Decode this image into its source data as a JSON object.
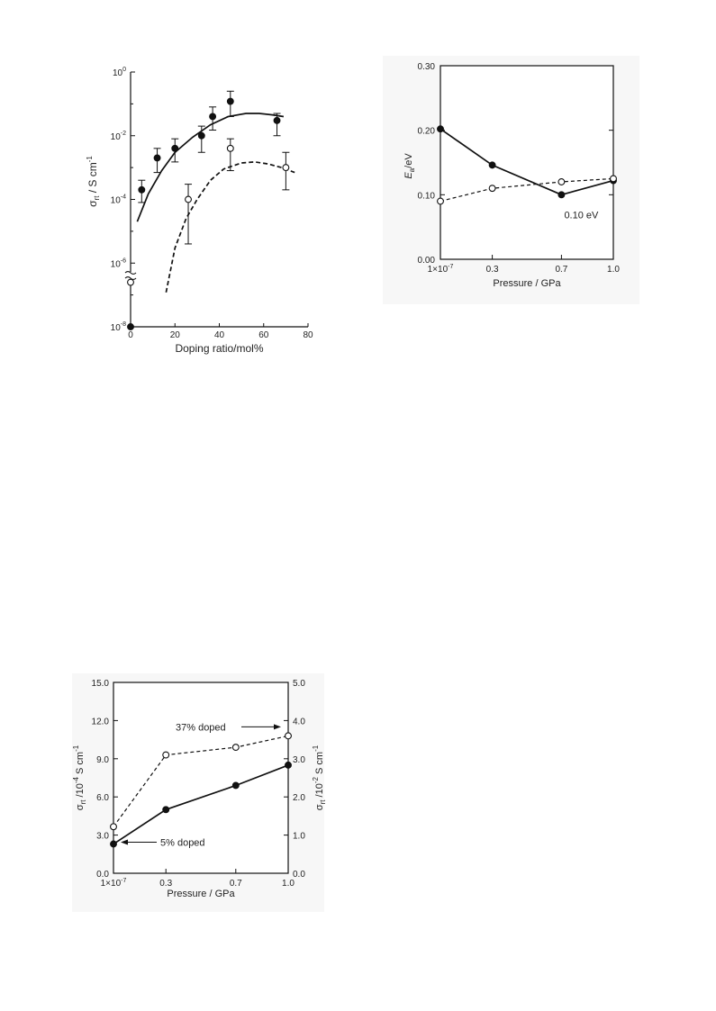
{
  "chart_data": [
    {
      "type": "scatter",
      "xlabel": "Doping ratio/mol%",
      "ylabel": "σrt / S cm-1",
      "ylabel_main": "σ",
      "ylabel_sub": "rt",
      "ylabel_unit": " / S cm",
      "ylabel_sup": "-1",
      "scale": "log",
      "xlim": [
        0,
        80
      ],
      "ylim_log": [
        -8,
        0
      ],
      "x_ticks": [
        "0",
        "20",
        "40",
        "60",
        "80"
      ],
      "y_ticks": [
        {
          "base": "10",
          "exp": "-8"
        },
        {
          "base": "10",
          "exp": "-6"
        },
        {
          "base": "10",
          "exp": "-4"
        },
        {
          "base": "10",
          "exp": "-2"
        },
        {
          "base": "10",
          "exp": "0"
        }
      ],
      "series": [
        {
          "marker": "filled",
          "points": [
            {
              "x": 0,
              "y": 1e-08
            },
            {
              "x": 5,
              "y": 0.0002,
              "lo": 8e-05,
              "hi": 0.0004
            },
            {
              "x": 12,
              "y": 0.002,
              "lo": 0.0007,
              "hi": 0.004
            },
            {
              "x": 20,
              "y": 0.004,
              "lo": 0.0015,
              "hi": 0.008
            },
            {
              "x": 32,
              "y": 0.01,
              "lo": 0.003,
              "hi": 0.02
            },
            {
              "x": 37,
              "y": 0.04,
              "lo": 0.015,
              "hi": 0.08
            },
            {
              "x": 45,
              "y": 0.12,
              "lo": 0.04,
              "hi": 0.25
            },
            {
              "x": 66,
              "y": 0.03,
              "lo": 0.01,
              "hi": 0.05
            }
          ],
          "curve": [
            [
              3,
              2e-05
            ],
            [
              8,
              0.00015
            ],
            [
              14,
              0.0008
            ],
            [
              20,
              0.003
            ],
            [
              28,
              0.009
            ],
            [
              36,
              0.022
            ],
            [
              44,
              0.04
            ],
            [
              52,
              0.05
            ],
            [
              58,
              0.05
            ],
            [
              64,
              0.045
            ],
            [
              69,
              0.04
            ]
          ],
          "curve_style": "solid"
        },
        {
          "marker": "open",
          "points": [
            {
              "x": 0,
              "y": 2.5e-07
            },
            {
              "x": 26,
              "y": 0.0001,
              "lo": 4e-06,
              "hi": 0.0003
            },
            {
              "x": 45,
              "y": 0.004,
              "lo": 0.0008,
              "hi": 0.008
            },
            {
              "x": 70,
              "y": 0.001,
              "lo": 0.0002,
              "hi": 0.003
            }
          ],
          "curve": [
            [
              16,
              1.2e-07
            ],
            [
              20,
              3e-06
            ],
            [
              25,
              2.5e-05
            ],
            [
              30,
              0.0001
            ],
            [
              36,
              0.0004
            ],
            [
              42,
              0.0009
            ],
            [
              50,
              0.0014
            ],
            [
              56,
              0.0015
            ],
            [
              62,
              0.0013
            ],
            [
              68,
              0.001
            ],
            [
              74,
              0.0007
            ]
          ],
          "curve_style": "dashed"
        }
      ]
    },
    {
      "type": "line",
      "xlabel": "Pressure / GPa",
      "ylabel_main": "E",
      "ylabel_sub": "a",
      "ylabel_unit": "/eV",
      "categories": [
        "1×10-7",
        "0.3",
        "0.7",
        "1.0"
      ],
      "category_base": "1×10",
      "category_sup": "-7",
      "x_values": [
        0,
        0.3,
        0.7,
        1.0
      ],
      "ylim": [
        0,
        0.3
      ],
      "y_ticks": [
        "0.00",
        "0.10",
        "0.20",
        "0.30"
      ],
      "series": [
        {
          "marker": "filled",
          "style": "solid",
          "values": [
            0.202,
            0.146,
            0.1,
            0.122
          ]
        },
        {
          "marker": "open",
          "style": "dashed",
          "values": [
            0.09,
            0.11,
            0.12,
            0.125
          ]
        }
      ],
      "annotation": "0.10 eV"
    },
    {
      "type": "line",
      "xlabel": "Pressure / GPa",
      "categories": [
        "1×10-7",
        "0.3",
        "0.7",
        "1.0"
      ],
      "category_base": "1×10",
      "category_sup": "-7",
      "x_values": [
        0,
        0.3,
        0.7,
        1.0
      ],
      "ylim_left": [
        0,
        15
      ],
      "ylim_right": [
        0,
        5
      ],
      "y_ticks_left": [
        "0.0",
        "3.0",
        "6.0",
        "9.0",
        "12.0",
        "15.0"
      ],
      "y_ticks_right": [
        "0.0",
        "1.0",
        "2.0",
        "3.0",
        "4.0",
        "5.0"
      ],
      "ylabel_left": {
        "main": "σ",
        "sub": "rt",
        "unit": " /10",
        "sup": "-4",
        "tail": " S cm",
        "sup2": "-1"
      },
      "ylabel_right": {
        "main": "σ",
        "sub": "rt",
        "unit": " /10",
        "sup": "-2",
        "tail": " S cm",
        "sup2": "-1"
      },
      "series": [
        {
          "name": "5% doped",
          "axis": "left",
          "marker": "filled",
          "style": "solid",
          "values": [
            2.3,
            5.0,
            6.9,
            8.5
          ]
        },
        {
          "name": "37% doped",
          "axis": "right",
          "marker": "open",
          "style": "dashed",
          "values": [
            1.22,
            3.1,
            3.3,
            3.6
          ]
        }
      ],
      "labels": {
        "five": "5% doped",
        "thirtyseven": "37% doped"
      }
    }
  ]
}
